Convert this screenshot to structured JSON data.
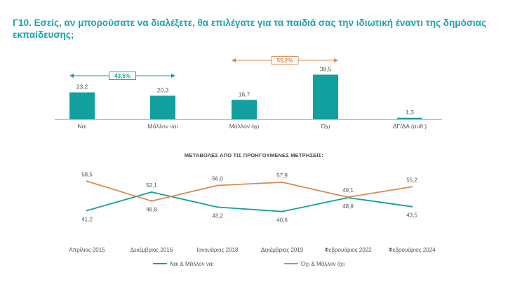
{
  "title": "Γ10. Εσείς, αν μπορούσατε να διαλέξετε, θα επιλέγατε για τα παιδιά σας την ιδιωτική έναντι της δημόσιας εκπαίδευσης;",
  "colors": {
    "title": "#1aa3b0",
    "teal": "#12a09f",
    "orange": "#d98a4e",
    "text": "#555555"
  },
  "chart_data": [
    {
      "type": "bar",
      "categories": [
        "Ναι",
        "Μάλλον ναι",
        "Μάλλον όχι",
        "Όχι",
        "ΔΓ/ΔΑ (αυθ.)"
      ],
      "values": [
        23.2,
        20.3,
        16.7,
        38.5,
        1.3
      ],
      "value_labels": [
        "23,2",
        "20,3",
        "16,7",
        "38,5",
        "1,3"
      ],
      "ylim": [
        0,
        40
      ],
      "grouping_labels": [
        {
          "label": "43,5%",
          "from": "Ναι",
          "to": "Μάλλον ναι",
          "color": "teal"
        },
        {
          "label": "55,2%",
          "from": "Μάλλον όχι",
          "to": "Όχι",
          "color": "orange"
        }
      ]
    },
    {
      "type": "line",
      "title": "ΜΕΤΑΒΟΛΕΣ ΑΠΟ ΤΙΣ ΠΡΟΗΓΟΥΜΕΝΕΣ ΜΕΤΡΗΣΕΙΣ:",
      "x": [
        "Απρίλιος 2015",
        "Δεκέμβριος 2016",
        "Ιανουάριος 2018",
        "Δεκέμβριος 2019",
        "Φεβρουάριος 2022",
        "Φεβρουάριος 2024"
      ],
      "ylim": [
        38,
        62
      ],
      "series": [
        {
          "name": "Ναι & Μάλλον ναι",
          "color": "teal",
          "values": [
            41.2,
            52.1,
            43.2,
            40.6,
            48.8,
            43.5
          ],
          "labels": [
            "41,2",
            "52,1",
            "43,2",
            "40,6",
            "48,8",
            "43,5"
          ],
          "label_pos": [
            "below",
            "above",
            "below",
            "below",
            "below",
            "below"
          ]
        },
        {
          "name": "Όχι & Μάλλον όχι",
          "color": "orange",
          "values": [
            58.5,
            46.8,
            56.0,
            57.9,
            49.1,
            55.2
          ],
          "labels": [
            "58,5",
            "46,8",
            "56,0",
            "57,9",
            "49,1",
            "55,2"
          ],
          "label_pos": [
            "above",
            "below",
            "above",
            "above",
            "above",
            "above"
          ]
        }
      ],
      "legend": "bottom"
    }
  ]
}
